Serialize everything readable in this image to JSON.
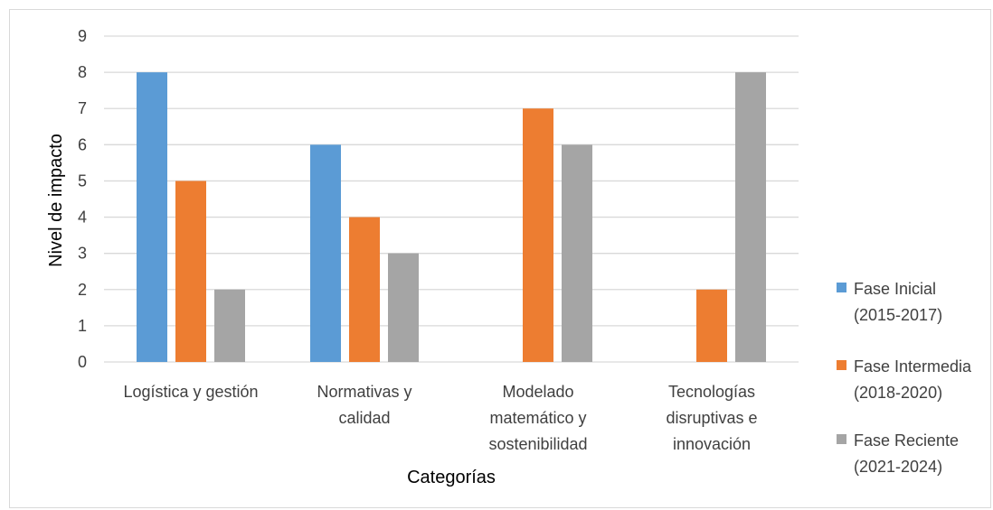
{
  "chart_data": {
    "type": "bar",
    "title": "",
    "xlabel": "Categorías",
    "ylabel": "Nivel de impacto",
    "ylim": [
      0,
      9
    ],
    "yticks": [
      0,
      1,
      2,
      3,
      4,
      5,
      6,
      7,
      8,
      9
    ],
    "grid": true,
    "legend_position": "right",
    "categories": [
      [
        "Logística y gestión"
      ],
      [
        "Normativas y",
        "calidad"
      ],
      [
        "Modelado",
        "matemático y",
        "sostenibilidad"
      ],
      [
        "Tecnologías",
        "disruptivas e",
        "innovación"
      ]
    ],
    "series": [
      {
        "name": [
          "Fase Inicial",
          "(2015-2017)"
        ],
        "color": "#5b9bd5",
        "values": [
          8,
          6,
          0,
          0
        ]
      },
      {
        "name": [
          "Fase Intermedia",
          "(2018-2020)"
        ],
        "color": "#ed7d31",
        "values": [
          5,
          4,
          7,
          2
        ]
      },
      {
        "name": [
          "Fase Reciente",
          "(2021-2024)"
        ],
        "color": "#a5a5a5",
        "values": [
          2,
          3,
          6,
          8
        ]
      }
    ]
  }
}
